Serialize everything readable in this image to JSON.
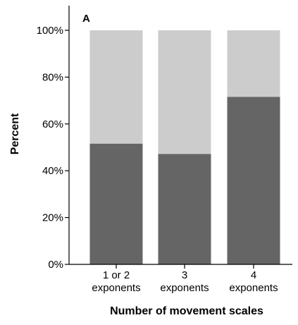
{
  "chart_data": {
    "type": "bar",
    "stacked": true,
    "percent_scale": true,
    "panel_label": "A",
    "xlabel": "Number of movement scales",
    "ylabel": "Percent",
    "ylim": [
      0,
      100
    ],
    "yticks": [
      0,
      20,
      40,
      60,
      80,
      100
    ],
    "ytick_labels": [
      "0%",
      "20%",
      "40%",
      "60%",
      "80%",
      "100%"
    ],
    "categories": [
      [
        "1 or 2",
        "exponents"
      ],
      [
        "3",
        "exponents"
      ],
      [
        "4",
        "exponents"
      ]
    ],
    "series": [
      {
        "color": "#656565",
        "values": [
          51.6,
          47.2,
          71.6
        ]
      },
      {
        "color": "#cccccc",
        "values": [
          48.4,
          52.8,
          28.4
        ]
      }
    ],
    "legend": "none",
    "grid": false
  }
}
